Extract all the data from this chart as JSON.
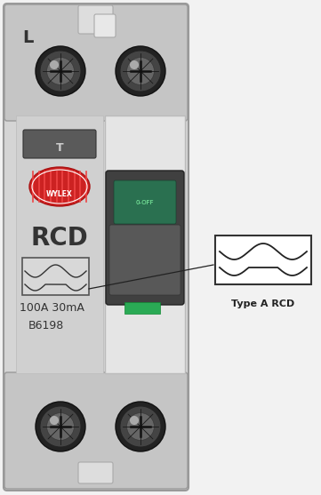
{
  "fig_w": 3.61,
  "fig_h": 5.57,
  "bg_color": "#f0f0f0",
  "body_color": "#d8d8d8",
  "body_edge": "#aaaaaa",
  "top_bar_color": "#c8c8c8",
  "right_panel_color": "#e8e8e8",
  "left_panel_color": "#d2d2d2",
  "screw_outer": "#2a2a2a",
  "screw_inner": "#444444",
  "screw_bright": "#888888",
  "label_L": "L",
  "label_RCD": "RCD",
  "label_specs": "100A 30mA",
  "label_code": "B6198",
  "label_brand": "WYLEX",
  "label_type": "Type A RCD",
  "red_logo_color": "#cc2222",
  "green_indicator": "#2aaa55",
  "switch_dark": "#3a3a3a",
  "switch_green": "#2a7a50",
  "button_color": "#5a5a5a",
  "annotation_line_color": "#222222",
  "sym_box_edge": "#333333"
}
